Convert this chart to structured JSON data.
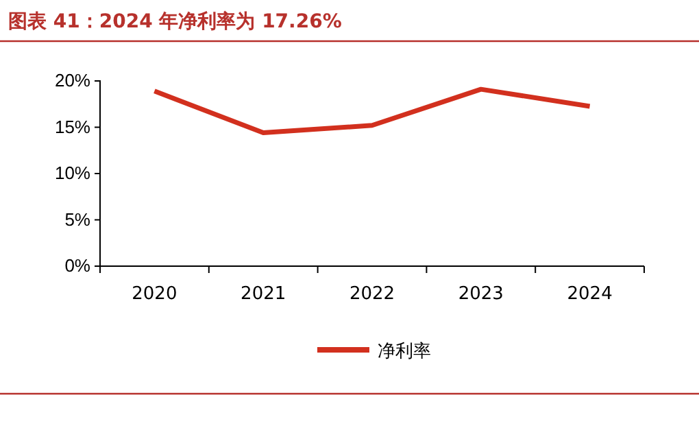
{
  "chart_data": {
    "type": "line",
    "title": "图表 41：2024 年净利率为 17.26%",
    "categories": [
      "2020",
      "2021",
      "2022",
      "2023",
      "2024"
    ],
    "series": [
      {
        "name": "净利率",
        "color": "#d2301e",
        "values": [
          18.9,
          14.4,
          15.2,
          19.1,
          17.26
        ]
      }
    ],
    "ylim": [
      0,
      20
    ],
    "yticks": [
      {
        "value": 0,
        "label": "0%"
      },
      {
        "value": 5,
        "label": "5%"
      },
      {
        "value": 10,
        "label": "10%"
      },
      {
        "value": 15,
        "label": "15%"
      },
      {
        "value": 20,
        "label": "20%"
      }
    ],
    "grid": false,
    "legend": "bottom",
    "marker": "none",
    "line_style": "solid"
  }
}
